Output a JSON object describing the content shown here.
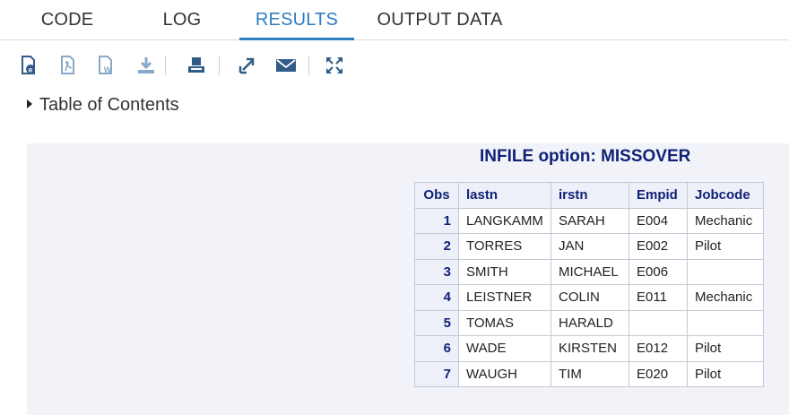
{
  "tabs": [
    {
      "label": "CODE"
    },
    {
      "label": "LOG"
    },
    {
      "label": "RESULTS"
    },
    {
      "label": "OUTPUT DATA"
    }
  ],
  "active_tab": "RESULTS",
  "toolbar": {
    "icons": [
      "html-download-icon",
      "pdf-download-icon",
      "word-download-icon",
      "download-icon",
      "print-icon",
      "open-new-window-icon",
      "email-icon",
      "maximize-icon"
    ]
  },
  "toc": {
    "label": "Table of Contents"
  },
  "results": {
    "title": "INFILE option: MISSOVER",
    "columns": [
      "Obs",
      "lastn",
      "irstn",
      "Empid",
      "Jobcode"
    ],
    "rows": [
      [
        "1",
        "LANGKAMM",
        "SARAH",
        "E004",
        "Mechanic"
      ],
      [
        "2",
        "TORRES",
        "JAN",
        "E002",
        "Pilot"
      ],
      [
        "3",
        "SMITH",
        "MICHAEL",
        "E006",
        ""
      ],
      [
        "4",
        "LEISTNER",
        "COLIN",
        "E011",
        "Mechanic"
      ],
      [
        "5",
        "TOMAS",
        "HARALD",
        "",
        ""
      ],
      [
        "6",
        "WADE",
        "KIRSTEN",
        "E012",
        "Pilot"
      ],
      [
        "7",
        "WAUGH",
        "TIM",
        "E020",
        "Pilot"
      ]
    ]
  },
  "colors": {
    "accent": "#2e7dc0",
    "header_text": "#112277",
    "panel_bg": "#f1f3f9"
  }
}
